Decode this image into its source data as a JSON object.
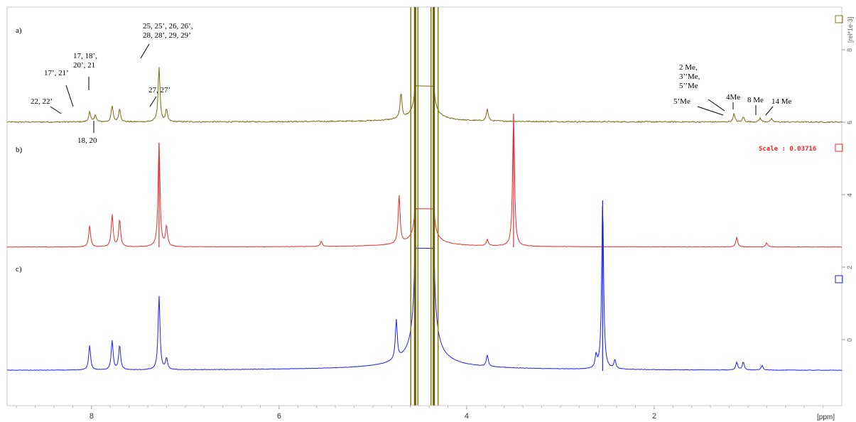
{
  "chart_data": {
    "type": "line",
    "xlabel": "[ppm]",
    "xlim": [
      8.9,
      0.0
    ],
    "x_ticks": [
      "8",
      "6",
      "4",
      "2"
    ],
    "right_axis": {
      "label": "[rel*1e-3]",
      "ticks": [
        "8",
        "6",
        "4",
        "2",
        "0"
      ]
    },
    "scale_label": "Scale : 0.03716",
    "series": [
      {
        "panel_label": "a)",
        "color": "#7a6a10",
        "peaks": [
          {
            "ppm": 8.02,
            "height": 0.1
          },
          {
            "ppm": 7.96,
            "height": 0.07
          },
          {
            "ppm": 7.78,
            "height": 0.16
          },
          {
            "ppm": 7.7,
            "height": 0.13
          },
          {
            "ppm": 7.28,
            "height": 0.55
          },
          {
            "ppm": 7.2,
            "height": 0.12
          },
          {
            "ppm": 4.7,
            "height": 0.25
          },
          {
            "ppm": 3.78,
            "height": 0.12
          },
          {
            "ppm": 1.15,
            "height": 0.08
          },
          {
            "ppm": 1.05,
            "height": 0.05
          },
          {
            "ppm": 0.87,
            "height": 0.04
          },
          {
            "ppm": 0.75,
            "height": 0.03
          }
        ]
      },
      {
        "panel_label": "b)",
        "color": "#e03030",
        "peaks": [
          {
            "ppm": 8.02,
            "height": 0.2
          },
          {
            "ppm": 7.78,
            "height": 0.3
          },
          {
            "ppm": 7.7,
            "height": 0.26
          },
          {
            "ppm": 7.28,
            "height": 0.98
          },
          {
            "ppm": 7.2,
            "height": 0.19
          },
          {
            "ppm": 5.55,
            "height": 0.05
          },
          {
            "ppm": 4.72,
            "height": 0.45
          },
          {
            "ppm": 3.78,
            "height": 0.06
          },
          {
            "ppm": 3.5,
            "height": 1.25
          },
          {
            "ppm": 1.12,
            "height": 0.09
          },
          {
            "ppm": 0.8,
            "height": 0.04
          }
        ]
      },
      {
        "panel_label": "c)",
        "color": "#1e1eff",
        "peaks": [
          {
            "ppm": 8.02,
            "height": 0.22
          },
          {
            "ppm": 7.78,
            "height": 0.26
          },
          {
            "ppm": 7.7,
            "height": 0.22
          },
          {
            "ppm": 7.28,
            "height": 0.65
          },
          {
            "ppm": 7.2,
            "height": 0.1
          },
          {
            "ppm": 4.75,
            "height": 0.35
          },
          {
            "ppm": 3.78,
            "height": 0.1
          },
          {
            "ppm": 2.62,
            "height": 0.11
          },
          {
            "ppm": 2.55,
            "height": 1.5
          },
          {
            "ppm": 2.42,
            "height": 0.08
          },
          {
            "ppm": 1.12,
            "height": 0.07
          },
          {
            "ppm": 1.05,
            "height": 0.07
          },
          {
            "ppm": 0.85,
            "height": 0.04
          }
        ]
      }
    ],
    "solvent_region_ppm": [
      4.35,
      4.55
    ],
    "annotations": [
      {
        "text": [
          "22, 22’"
        ],
        "target_ppm": 8.07
      },
      {
        "text": [
          "17’, 21’"
        ],
        "target_ppm": 7.96
      },
      {
        "text": [
          "17, 18’,",
          "20’, 21"
        ],
        "target_ppm": 7.78
      },
      {
        "text": [
          "18, 20"
        ],
        "target_ppm": 7.7
      },
      {
        "text": [
          "25, 25’, 26, 26’,",
          "28, 28’, 29, 29’"
        ],
        "target_ppm": 7.28
      },
      {
        "text": [
          "27, 27’"
        ],
        "target_ppm": 7.2
      },
      {
        "text": [
          "2 Me,",
          "3’’Me,",
          "5’’Me"
        ],
        "target_ppm": 1.15
      },
      {
        "text": [
          "5’Me"
        ],
        "target_ppm": 1.2
      },
      {
        "text": [
          "4Me"
        ],
        "target_ppm": 1.05
      },
      {
        "text": [
          "8 Me"
        ],
        "target_ppm": 0.87
      },
      {
        "text": [
          "14 Me"
        ],
        "target_ppm": 0.75
      }
    ]
  }
}
